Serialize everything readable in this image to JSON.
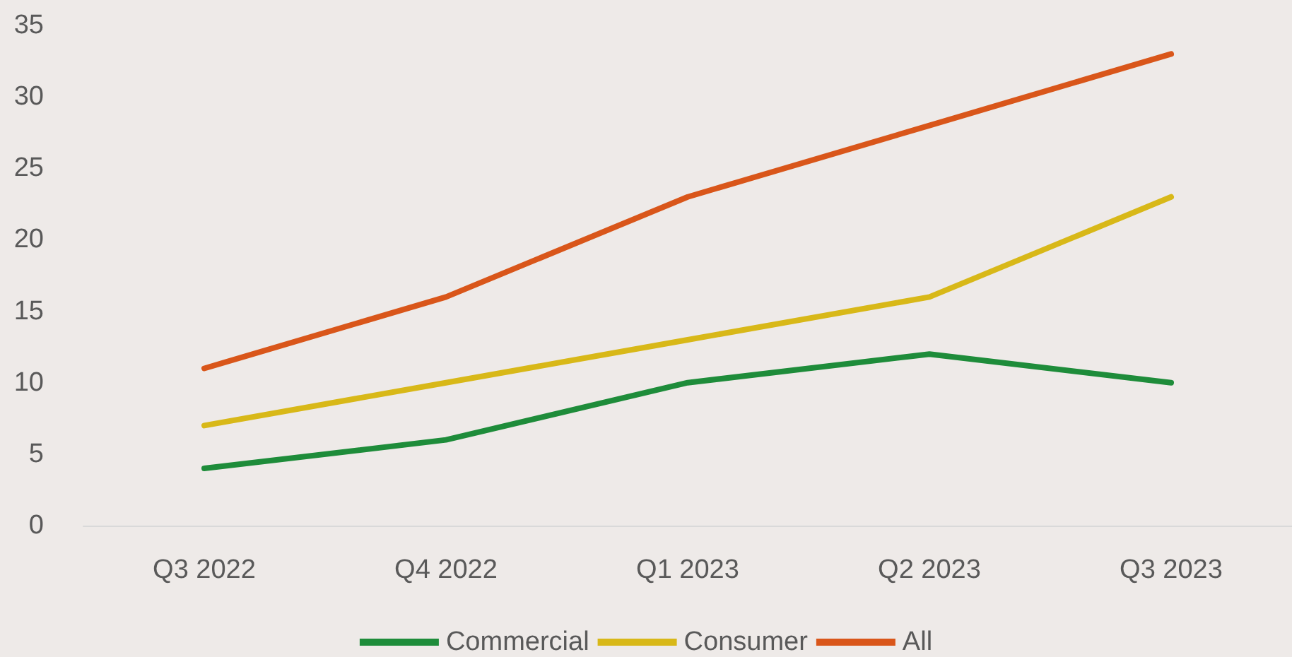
{
  "chart_data": {
    "type": "line",
    "categories": [
      "Q3 2022",
      "Q4 2022",
      "Q1 2023",
      "Q2 2023",
      "Q3 2023"
    ],
    "series": [
      {
        "name": "Commercial",
        "color": "#1e8c3a",
        "values": [
          4,
          6,
          10,
          12,
          10
        ]
      },
      {
        "name": "Consumer",
        "color": "#d8b818",
        "values": [
          7,
          10,
          13,
          16,
          23
        ]
      },
      {
        "name": "All",
        "color": "#d9561a",
        "values": [
          11,
          16,
          23,
          28,
          33
        ]
      }
    ],
    "ylim": [
      0,
      35
    ],
    "yticks": [
      0,
      5,
      10,
      15,
      20,
      25,
      30,
      35
    ],
    "grid": false,
    "legend": "bottom",
    "marker": "none",
    "line_style": "solid"
  }
}
